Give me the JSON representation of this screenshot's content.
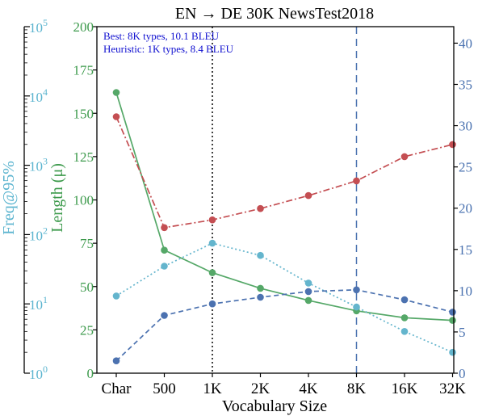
{
  "chart_data": {
    "type": "line",
    "title": "EN → DE 30K NewsTest2018",
    "xlabel": "Vocabulary Size",
    "categories": [
      "Char",
      "500",
      "1K",
      "2K",
      "4K",
      "8K",
      "16K",
      "32K"
    ],
    "annotations": {
      "best": "Best: 8K types, 10.1 BLEU",
      "heuristic": "Heuristic: 1K types, 8.4 BLEU"
    },
    "vlines": [
      {
        "at": "1K",
        "style": "dotted",
        "color": "#000000"
      },
      {
        "at": "8K",
        "style": "dashed",
        "color": "#4a72b0"
      }
    ],
    "axes": {
      "freq": {
        "label": "Freq@95%",
        "scale": "log",
        "range": [
          1,
          100000
        ],
        "ticks": [
          {
            "value": 1,
            "base": "10",
            "exp": "0"
          },
          {
            "value": 10,
            "base": "10",
            "exp": "1"
          },
          {
            "value": 100,
            "base": "10",
            "exp": "2"
          },
          {
            "value": 1000,
            "base": "10",
            "exp": "3"
          },
          {
            "value": 10000,
            "base": "10",
            "exp": "4"
          },
          {
            "value": 100000,
            "base": "10",
            "exp": "5"
          }
        ],
        "color": "#5bb4cf"
      },
      "length": {
        "label": "Length (μ)",
        "range": [
          0,
          200
        ],
        "ticks": [
          "0",
          "25",
          "50",
          "75",
          "100",
          "125",
          "150",
          "175",
          "200"
        ],
        "color": "#3d9a4c"
      },
      "bleu": {
        "range": [
          0,
          42
        ],
        "ticks": [
          "0",
          "5",
          "10",
          "15",
          "20",
          "25",
          "30",
          "35",
          "40"
        ],
        "color": "#4a72b0"
      }
    },
    "series": [
      {
        "axis": "length",
        "color": "#55a868",
        "style": "solid",
        "values": [
          162,
          71,
          58,
          49,
          42,
          36,
          32,
          30.5
        ]
      },
      {
        "axis": "length",
        "color": "#c44e52",
        "style": "dashdot",
        "values": [
          148,
          84,
          88.5,
          95,
          102.5,
          111,
          125,
          132
        ]
      },
      {
        "axis": "freq",
        "color": "#64b5cd",
        "style": "dotted",
        "values": [
          13,
          35,
          75,
          50,
          20,
          9,
          4,
          2
        ]
      },
      {
        "axis": "bleu",
        "color": "#4c72b0",
        "style": "dashed",
        "values": [
          1.5,
          7,
          8.4,
          9.2,
          9.9,
          10.1,
          8.9,
          7.4
        ]
      }
    ]
  }
}
